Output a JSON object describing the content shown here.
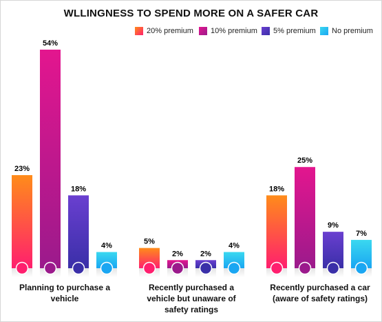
{
  "chart_data": {
    "type": "bar",
    "title": "WLLINGNESS TO SPEND MORE ON A SAFER CAR",
    "categories": [
      "Planning to purchase a vehicle",
      "Recently purchased a vehicle but unaware of safety ratings",
      "Recently purchased a car (aware of safety ratings)"
    ],
    "series": [
      {
        "name": "20% premium",
        "values": [
          23,
          5,
          18
        ],
        "color_top": "#ff8c1a",
        "color_bottom": "#ff1f6e"
      },
      {
        "name": "10% premium",
        "values": [
          54,
          2,
          25
        ],
        "color_top": "#e3168e",
        "color_bottom": "#9b1a8c"
      },
      {
        "name": "5% premium",
        "values": [
          18,
          2,
          9
        ],
        "color_top": "#6a3fd0",
        "color_bottom": "#3a2fa8"
      },
      {
        "name": "No premium",
        "values": [
          4,
          4,
          7
        ],
        "color_top": "#3ad8f0",
        "color_bottom": "#1aa6f2"
      }
    ],
    "data_labels": [
      [
        "23%",
        "54%",
        "18%",
        "4%"
      ],
      [
        "5%",
        "2%",
        "2%",
        "4%"
      ],
      [
        "18%",
        "25%",
        "9%",
        "7%"
      ]
    ],
    "ylim": [
      0,
      54
    ],
    "legend_position": "top-right",
    "grid": false
  },
  "category_label_lines": [
    [
      "Planning to purchase a",
      "vehicle"
    ],
    [
      "Recently purchased a",
      "vehicle but unaware of",
      "safety ratings"
    ],
    [
      "Recently purchased a car",
      "(aware of safety ratings)"
    ]
  ]
}
